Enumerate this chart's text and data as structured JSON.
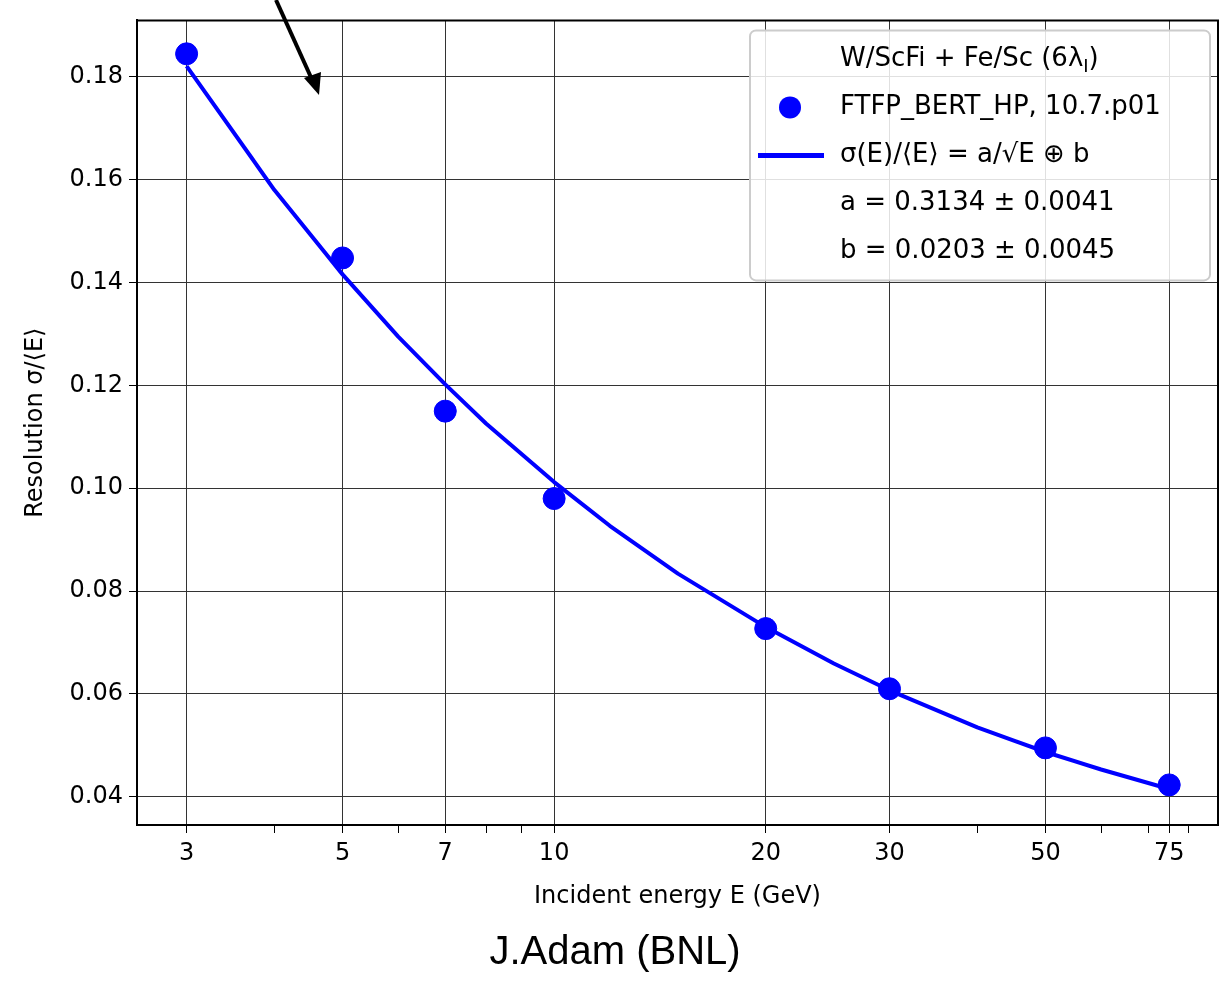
{
  "chart_data": {
    "type": "scatter",
    "xlabel": "Incident energy E (GeV)",
    "ylabel": "Resolution σ/⟨E⟩",
    "legend_title": "W/ScFi + Fe/Sc (6λ$_{I}$)",
    "legend": "top right",
    "grid": true,
    "log": "x",
    "marker": "circle",
    "xlim": [
      2.55,
      88
    ],
    "xticks": [
      3,
      {
        "value": 4,
        "label": null
      },
      5,
      {
        "value": 6,
        "label": null
      },
      7,
      {
        "value": 8,
        "label": null
      },
      {
        "value": 9,
        "label": null
      },
      10,
      20,
      30,
      {
        "value": 40,
        "label": null
      },
      50,
      {
        "value": 60,
        "label": null
      },
      {
        "value": 70,
        "label": null
      },
      75,
      {
        "value": 80,
        "label": null
      }
    ],
    "ylim": [
      0.0345,
      0.191
    ],
    "yticks": [
      0.04,
      0.06,
      0.08,
      {
        "value": 0.1,
        "label": "0.10"
      },
      0.12,
      0.14,
      0.16,
      0.18
    ],
    "series": [
      {
        "name": "FTFP_BERT_HP, 10.7.p01",
        "type": "scatter",
        "color": "#0000ff",
        "x": [
          3,
          5,
          7,
          10,
          20,
          30,
          50,
          75
        ],
        "values": [
          0.1845,
          0.1448,
          0.115,
          0.098,
          0.0727,
          0.061,
          0.0495,
          0.0423
        ]
      },
      {
        "name": "σ(E)/⟨E⟩ = a/√E ⊕ b",
        "type": "line",
        "color": "#0000ff",
        "line_style": "solid",
        "marker": "none",
        "x": [
          3,
          4,
          5,
          6,
          7,
          8,
          10,
          12,
          15,
          20,
          25,
          30,
          40,
          50,
          60,
          75
        ],
        "values": [
          0.1821,
          0.158,
          0.1416,
          0.1295,
          0.1202,
          0.1126,
          0.1012,
          0.0927,
          0.0834,
          0.073,
          0.0659,
          0.0607,
          0.0535,
          0.0487,
          0.0453,
          0.0415
        ]
      }
    ],
    "annotations": [
      "a = 0.3134 ± 0.0041",
      "b = 0.0203 ± 0.0045",
      "J.Adam (BNL)"
    ]
  }
}
